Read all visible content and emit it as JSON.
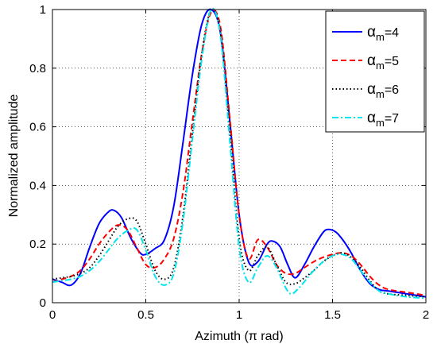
{
  "chart_data": {
    "type": "line",
    "title": "",
    "xlabel": "Azimuth (π rad)",
    "ylabel": "Normalized amplitude",
    "xlim": [
      0,
      2
    ],
    "ylim": [
      0,
      1
    ],
    "xticks": [
      0,
      0.5,
      1,
      1.5,
      2
    ],
    "xtick_labels": [
      "0",
      "0.5",
      "1",
      "1.5",
      "2"
    ],
    "yticks": [
      0,
      0.2,
      0.4,
      0.6,
      0.8,
      1
    ],
    "ytick_labels": [
      "0",
      "0.2",
      "0.4",
      "0.6",
      "0.8",
      "1"
    ],
    "grid": true,
    "legend_position": "top-right",
    "series": [
      {
        "name": "αm=4",
        "legend_base": "α",
        "legend_sub": "m",
        "legend_suffix": "=4",
        "color": "#0000ff",
        "dash": "solid",
        "x": [
          0,
          0.05,
          0.1,
          0.15,
          0.2,
          0.25,
          0.3,
          0.33,
          0.37,
          0.42,
          0.47,
          0.5,
          0.55,
          0.6,
          0.65,
          0.7,
          0.75,
          0.8,
          0.85,
          0.9,
          0.95,
          1.0,
          1.05,
          1.1,
          1.15,
          1.18,
          1.22,
          1.26,
          1.3,
          1.35,
          1.4,
          1.45,
          1.48,
          1.52,
          1.56,
          1.6,
          1.65,
          1.7,
          1.75,
          1.8,
          1.85,
          1.9,
          2.0
        ],
        "y": [
          0.08,
          0.07,
          0.06,
          0.1,
          0.19,
          0.27,
          0.31,
          0.315,
          0.29,
          0.22,
          0.17,
          0.165,
          0.185,
          0.215,
          0.33,
          0.55,
          0.78,
          0.95,
          1.0,
          0.92,
          0.62,
          0.3,
          0.14,
          0.14,
          0.2,
          0.21,
          0.19,
          0.13,
          0.085,
          0.13,
          0.19,
          0.24,
          0.25,
          0.24,
          0.21,
          0.17,
          0.11,
          0.065,
          0.045,
          0.04,
          0.035,
          0.03,
          0.02
        ]
      },
      {
        "name": "αm=5",
        "legend_base": "α",
        "legend_sub": "m",
        "legend_suffix": "=5",
        "color": "#ff0000",
        "dash": "dashed",
        "x": [
          0,
          0.05,
          0.1,
          0.15,
          0.2,
          0.25,
          0.3,
          0.35,
          0.4,
          0.45,
          0.5,
          0.55,
          0.6,
          0.65,
          0.7,
          0.75,
          0.8,
          0.85,
          0.9,
          0.95,
          1.0,
          1.05,
          1.1,
          1.15,
          1.2,
          1.25,
          1.3,
          1.35,
          1.4,
          1.45,
          1.5,
          1.55,
          1.6,
          1.65,
          1.7,
          1.75,
          1.8,
          1.9,
          2.0
        ],
        "y": [
          0.07,
          0.08,
          0.09,
          0.11,
          0.15,
          0.2,
          0.24,
          0.265,
          0.25,
          0.19,
          0.13,
          0.12,
          0.15,
          0.22,
          0.38,
          0.62,
          0.85,
          0.99,
          0.94,
          0.63,
          0.3,
          0.15,
          0.215,
          0.19,
          0.13,
          0.1,
          0.1,
          0.12,
          0.14,
          0.155,
          0.165,
          0.17,
          0.16,
          0.13,
          0.09,
          0.06,
          0.045,
          0.035,
          0.025
        ]
      },
      {
        "name": "αm=6",
        "legend_base": "α",
        "legend_sub": "m",
        "legend_suffix": "=6",
        "color": "#000000",
        "dash": "dotted",
        "x": [
          0,
          0.05,
          0.1,
          0.15,
          0.2,
          0.25,
          0.3,
          0.35,
          0.4,
          0.45,
          0.5,
          0.55,
          0.6,
          0.65,
          0.7,
          0.75,
          0.8,
          0.85,
          0.9,
          0.95,
          1.0,
          1.05,
          1.1,
          1.15,
          1.2,
          1.25,
          1.3,
          1.35,
          1.4,
          1.45,
          1.5,
          1.55,
          1.6,
          1.65,
          1.7,
          1.75,
          1.8,
          1.9,
          2.0
        ],
        "y": [
          0.08,
          0.085,
          0.09,
          0.1,
          0.12,
          0.16,
          0.21,
          0.26,
          0.285,
          0.28,
          0.2,
          0.11,
          0.08,
          0.12,
          0.3,
          0.58,
          0.85,
          1.0,
          0.92,
          0.58,
          0.22,
          0.11,
          0.16,
          0.19,
          0.13,
          0.07,
          0.065,
          0.085,
          0.11,
          0.14,
          0.16,
          0.17,
          0.155,
          0.12,
          0.075,
          0.04,
          0.03,
          0.025,
          0.02
        ]
      },
      {
        "name": "αm=7",
        "legend_base": "α",
        "legend_sub": "m",
        "legend_suffix": "=7",
        "color": "#00e5ee",
        "dash": "dashdot",
        "x": [
          0,
          0.05,
          0.1,
          0.15,
          0.2,
          0.25,
          0.3,
          0.35,
          0.4,
          0.45,
          0.5,
          0.55,
          0.6,
          0.65,
          0.7,
          0.75,
          0.8,
          0.85,
          0.9,
          0.95,
          1.0,
          1.05,
          1.1,
          1.15,
          1.2,
          1.25,
          1.28,
          1.32,
          1.36,
          1.4,
          1.45,
          1.5,
          1.55,
          1.6,
          1.65,
          1.7,
          1.75,
          1.8,
          1.9,
          2.0
        ],
        "y": [
          0.07,
          0.075,
          0.08,
          0.09,
          0.11,
          0.14,
          0.18,
          0.22,
          0.245,
          0.25,
          0.18,
          0.09,
          0.06,
          0.1,
          0.28,
          0.56,
          0.83,
          1.0,
          0.91,
          0.55,
          0.19,
          0.07,
          0.12,
          0.16,
          0.12,
          0.05,
          0.03,
          0.05,
          0.08,
          0.11,
          0.14,
          0.16,
          0.165,
          0.15,
          0.11,
          0.07,
          0.04,
          0.03,
          0.02,
          0.015
        ]
      }
    ]
  }
}
